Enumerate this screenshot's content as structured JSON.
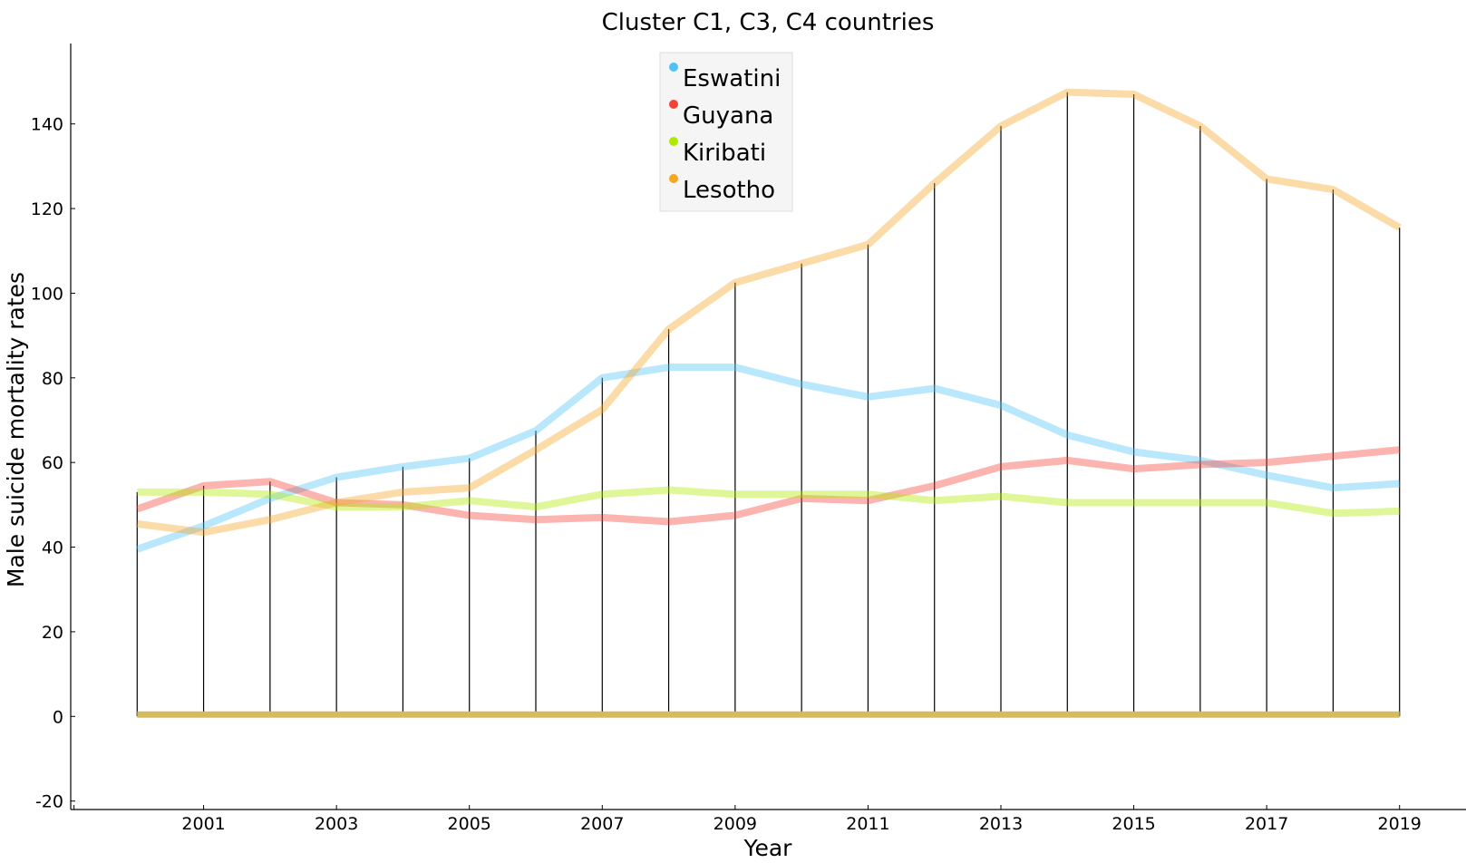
{
  "chart_data": {
    "type": "line",
    "title": "Cluster C1, C3, C4 countries",
    "xlabel": "Year",
    "ylabel": "Male suicide mortality rates",
    "x": [
      2000,
      2001,
      2002,
      2003,
      2004,
      2005,
      2006,
      2007,
      2008,
      2009,
      2010,
      2011,
      2012,
      2013,
      2014,
      2015,
      2016,
      2017,
      2018,
      2019
    ],
    "xticks": [
      "2001",
      "2003",
      "2005",
      "2007",
      "2009",
      "2011",
      "2013",
      "2015",
      "2017",
      "2019"
    ],
    "yticks": [
      "-20",
      "0",
      "20",
      "40",
      "60",
      "80",
      "100",
      "120",
      "140"
    ],
    "xlim": [
      1999.0,
      2020.0
    ],
    "ylim": [
      -22,
      159
    ],
    "grid": false,
    "legend_position": "top-center",
    "series": [
      {
        "name": "Eswatini",
        "color": "#4fc3f7",
        "values": [
          39.5,
          45,
          51.5,
          56.5,
          59,
          61,
          67.5,
          80,
          82.5,
          82.5,
          78.5,
          75.5,
          77.5,
          73.5,
          66.5,
          62.5,
          60.5,
          57,
          54,
          55
        ]
      },
      {
        "name": "Guyana",
        "color": "#f44336",
        "values": [
          49,
          54.5,
          55.5,
          50.5,
          50,
          47.5,
          46.5,
          47,
          46,
          47.5,
          51.5,
          51,
          54.5,
          59,
          60.5,
          58.5,
          59.5,
          60,
          61.5,
          63
        ]
      },
      {
        "name": "Kiribati",
        "color": "#aeea00",
        "values": [
          53,
          53,
          52.5,
          49.5,
          49.5,
          51,
          49.5,
          52.5,
          53.5,
          52.5,
          52.5,
          52.5,
          51,
          52,
          50.5,
          50.5,
          50.5,
          50.5,
          48,
          48.5
        ]
      },
      {
        "name": "Lesotho",
        "color": "#f5a623",
        "values": [
          45.5,
          43.5,
          46.5,
          50.5,
          53,
          54,
          63,
          72.5,
          91.5,
          102.5,
          107,
          111.5,
          126,
          139.5,
          147.5,
          147,
          139.5,
          127,
          124.5,
          115.5
        ]
      }
    ]
  },
  "colors": {
    "baseline": "#d6bb5c",
    "stem": "#000000"
  }
}
